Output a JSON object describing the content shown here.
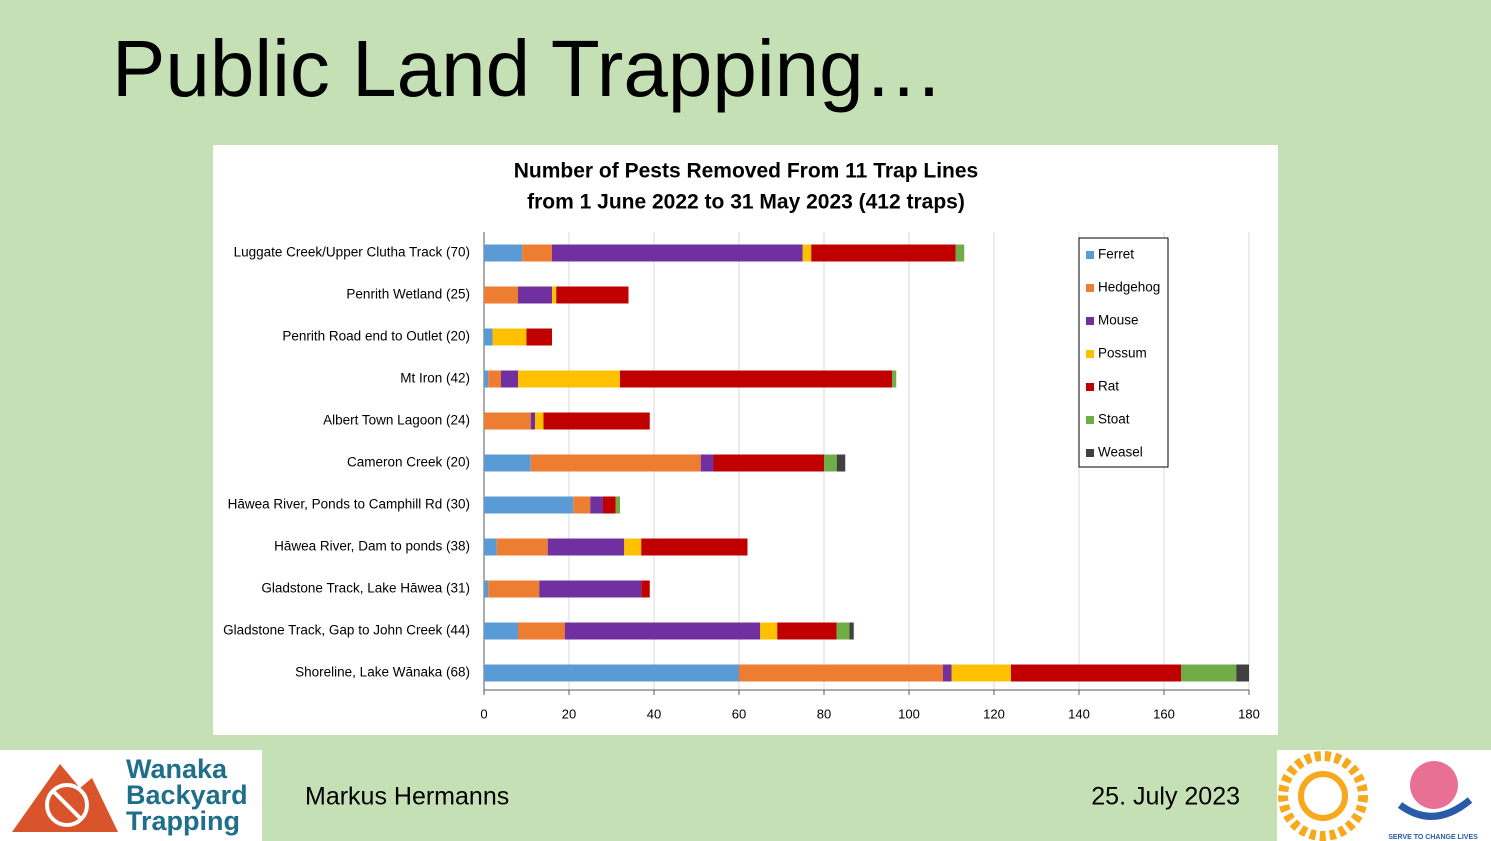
{
  "slide": {
    "title": "Public Land Trapping…",
    "author": "Markus Hermanns",
    "date": "25. July 2023"
  },
  "logo": {
    "lines": [
      "Wanaka",
      "Backyard",
      "Trapping"
    ],
    "motto": "SERVE TO CHANGE LIVES"
  },
  "chart_data": {
    "type": "stacked-barh",
    "title": "Number of Pests Removed From 11 Trap Lines",
    "subtitle": "from 1 June 2022 to 31 May 2023 (412 traps)",
    "categories": [
      "Luggate Creek/Upper Clutha Track (70)",
      "Penrith Wetland (25)",
      "Penrith Road end to Outlet (20)",
      "Mt Iron (42)",
      "Albert Town Lagoon (24)",
      "Cameron Creek (20)",
      "Hāwea River, Ponds to Camphill Rd (30)",
      "Hāwea River, Dam to ponds (38)",
      "Gladstone Track, Lake Hāwea (31)",
      "Gladstone Track, Gap to John Creek (44)",
      "Shoreline, Lake Wānaka (68)"
    ],
    "series": [
      {
        "name": "Ferret",
        "color": "#5b9bd5",
        "values": [
          9,
          0,
          2,
          1,
          0,
          11,
          21,
          3,
          1,
          8,
          60
        ]
      },
      {
        "name": "Hedgehog",
        "color": "#ed7d31",
        "values": [
          7,
          8,
          0,
          3,
          11,
          40,
          4,
          12,
          12,
          11,
          48
        ]
      },
      {
        "name": "Mouse",
        "color": "#7030a0",
        "values": [
          59,
          8,
          0,
          4,
          1,
          3,
          3,
          18,
          24,
          46,
          2
        ]
      },
      {
        "name": "Possum",
        "color": "#ffc000",
        "values": [
          2,
          1,
          8,
          24,
          2,
          0,
          0,
          4,
          0,
          4,
          14
        ]
      },
      {
        "name": "Rat",
        "color": "#c00000",
        "values": [
          34,
          17,
          6,
          64,
          25,
          26,
          3,
          25,
          2,
          14,
          40
        ]
      },
      {
        "name": "Stoat",
        "color": "#70ad47",
        "values": [
          2,
          0,
          0,
          1,
          0,
          3,
          1,
          0,
          0,
          3,
          13
        ]
      },
      {
        "name": "Weasel",
        "color": "#404040",
        "values": [
          0,
          0,
          0,
          0,
          0,
          2,
          0,
          0,
          0,
          1,
          3
        ]
      }
    ],
    "xlim": [
      0,
      180
    ],
    "xticks": [
      0,
      20,
      40,
      60,
      80,
      100,
      120,
      140,
      160,
      180
    ],
    "grid": true,
    "legend": "top-right"
  }
}
